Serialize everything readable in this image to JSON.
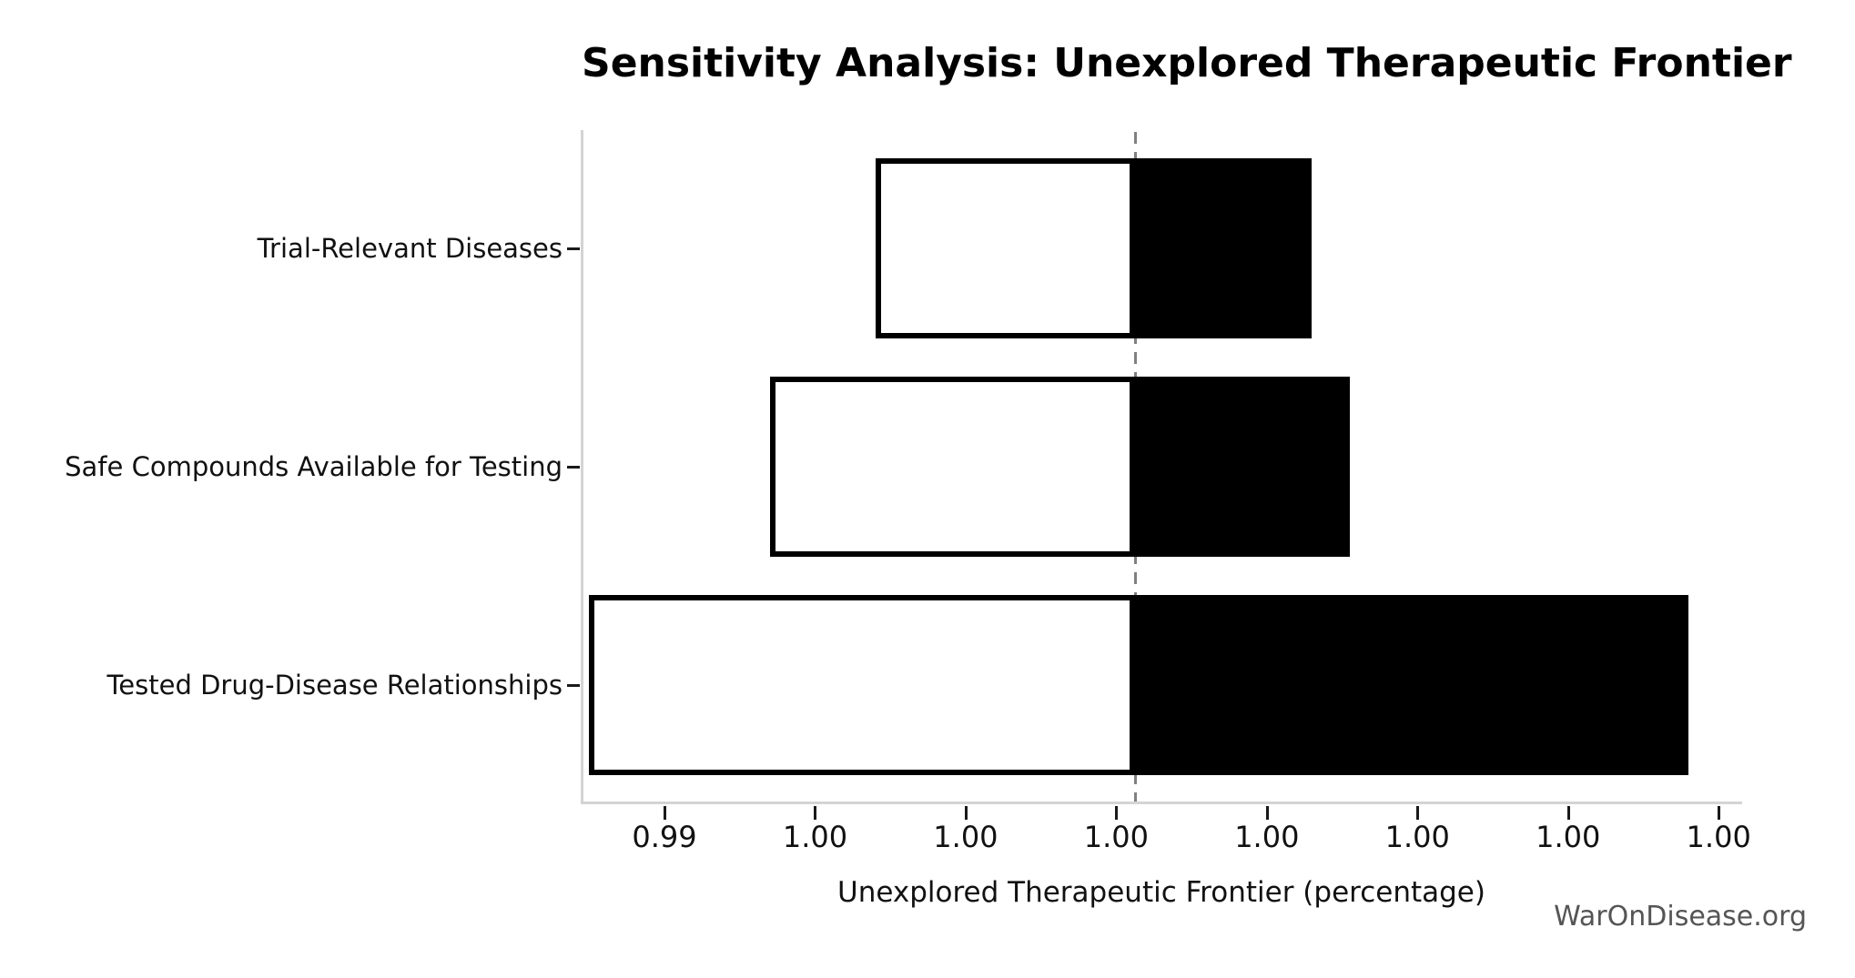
{
  "title": "Sensitivity Analysis: Unexplored Therapeutic Frontier",
  "watermark": "WarOnDisease.org",
  "axis": {
    "xlabel": "Unexplored Therapeutic Frontier (percentage)",
    "tick_labels": [
      "0.99",
      "1.00",
      "1.00",
      "1.00",
      "1.00",
      "1.00",
      "1.00",
      "1.00"
    ],
    "tick_values": [
      0.994,
      0.996,
      0.998,
      1.0,
      1.002,
      1.004,
      1.006,
      1.008
    ]
  },
  "chart_data": {
    "type": "bar",
    "subtype": "tornado-sensitivity",
    "orientation": "horizontal",
    "title": "Sensitivity Analysis: Unexplored Therapeutic Frontier",
    "xlabel": "Unexplored Therapeutic Frontier (percentage)",
    "ylabel": "",
    "categories": [
      "Trial-Relevant Diseases",
      "Safe Compounds Available for Testing",
      "Tested Drug-Disease Relationships"
    ],
    "baseline": 1.00025,
    "series": [
      {
        "name": "Trial-Relevant Diseases",
        "low": 0.9968,
        "high": 1.0026
      },
      {
        "name": "Safe Compounds Available for Testing",
        "low": 0.9954,
        "high": 1.0031
      },
      {
        "name": "Tested Drug-Disease Relationships",
        "low": 0.993,
        "high": 1.0076
      }
    ],
    "xlim": [
      0.9929,
      1.0083
    ],
    "x_tick_labels": [
      "0.99",
      "1.00",
      "1.00",
      "1.00",
      "1.00",
      "1.00",
      "1.00",
      "1.00"
    ],
    "x_tick_values": [
      0.994,
      0.996,
      0.998,
      1.0,
      1.002,
      1.004,
      1.006,
      1.008
    ],
    "grid": false,
    "legend": null,
    "colors": {
      "low_fill": "#ffffff",
      "high_fill": "#000000",
      "bar_edge": "#000000",
      "baseline_line": "#808080",
      "spine": "#d4d4d4",
      "tick": "#1a1a1a",
      "text": "#111111",
      "watermark_text": "#555555"
    }
  }
}
